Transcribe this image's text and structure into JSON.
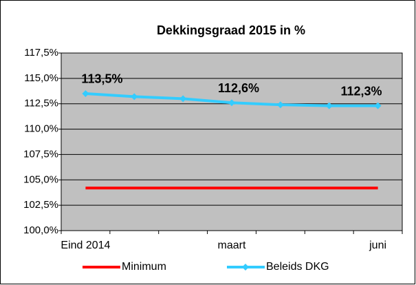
{
  "chart_data": {
    "type": "line",
    "title": "Dekkingsgraad  2015 in %",
    "categories": [
      "Eind 2014",
      null,
      null,
      "maart",
      null,
      null,
      "juni"
    ],
    "series": [
      {
        "name": "Minimum",
        "color": "#ff0000",
        "values": [
          104.2,
          104.2,
          104.2,
          104.2,
          104.2,
          104.2,
          104.2
        ]
      },
      {
        "name": "Beleids DKG",
        "color": "#33ccff",
        "values": [
          113.5,
          113.2,
          113.0,
          112.6,
          112.4,
          112.3,
          112.3
        ],
        "value_labels": [
          "113,5%",
          null,
          null,
          "112,6%",
          null,
          null,
          "112,3%"
        ]
      }
    ],
    "ylim": [
      100,
      117.5
    ],
    "yticks": [
      {
        "value": 100,
        "label": "100,0%"
      },
      {
        "value": 102.5,
        "label": "102,5%"
      },
      {
        "value": 105,
        "label": "105,0%"
      },
      {
        "value": 107.5,
        "label": "107,5%"
      },
      {
        "value": 110,
        "label": "110,0%"
      },
      {
        "value": 112.5,
        "label": "112,5%"
      },
      {
        "value": 115,
        "label": "115,0%"
      },
      {
        "value": 117.5,
        "label": "117,5%"
      }
    ],
    "grid": true,
    "legend": "bottom",
    "plot_background": "#c0c0c0"
  }
}
